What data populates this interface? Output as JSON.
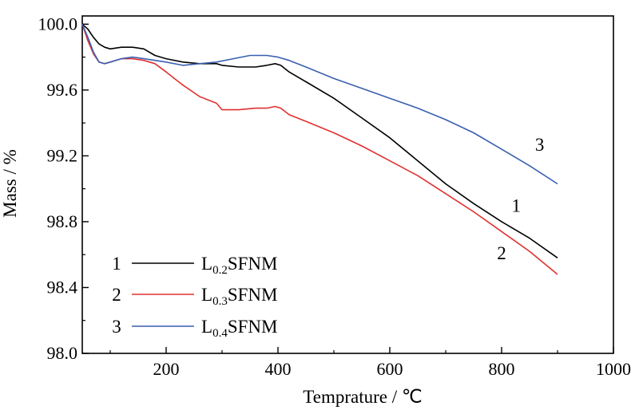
{
  "chart_data": {
    "type": "line",
    "xlabel": "Temprature / ℃",
    "ylabel": "Mass / %",
    "xlim": [
      50,
      1000
    ],
    "ylim": [
      98.0,
      100.05
    ],
    "xticks": [
      "200",
      "400",
      "600",
      "800",
      "1000"
    ],
    "yticks": [
      "98.0",
      "98.4",
      "98.8",
      "99.2",
      "99.6",
      "100.0"
    ],
    "grid": false,
    "legend": "bottom-left",
    "series": [
      {
        "num": "1",
        "name_main": "L",
        "name_sub": "0.2",
        "name_rest": "SFNM",
        "color": "#000000",
        "x": [
          50,
          60,
          70,
          80,
          90,
          100,
          120,
          140,
          160,
          180,
          200,
          230,
          260,
          290,
          300,
          330,
          360,
          380,
          395,
          405,
          420,
          450,
          500,
          550,
          600,
          650,
          700,
          750,
          800,
          850,
          900
        ],
        "y": [
          100.0,
          99.97,
          99.92,
          99.88,
          99.86,
          99.85,
          99.86,
          99.86,
          99.85,
          99.81,
          99.79,
          99.77,
          99.76,
          99.76,
          99.75,
          99.74,
          99.74,
          99.75,
          99.76,
          99.75,
          99.71,
          99.65,
          99.55,
          99.43,
          99.31,
          99.17,
          99.03,
          98.91,
          98.8,
          98.7,
          98.58
        ]
      },
      {
        "num": "2",
        "name_main": "L",
        "name_sub": "0.3",
        "name_rest": "SFNM",
        "color": "#e03030",
        "x": [
          50,
          60,
          70,
          80,
          90,
          100,
          120,
          140,
          160,
          180,
          200,
          230,
          260,
          290,
          300,
          330,
          360,
          380,
          395,
          405,
          420,
          450,
          500,
          550,
          600,
          650,
          700,
          750,
          800,
          850,
          900
        ],
        "y": [
          100.0,
          99.9,
          99.82,
          99.77,
          99.76,
          99.77,
          99.79,
          99.79,
          99.78,
          99.76,
          99.71,
          99.63,
          99.56,
          99.52,
          99.48,
          99.48,
          99.49,
          99.49,
          99.5,
          99.49,
          99.45,
          99.41,
          99.34,
          99.26,
          99.17,
          99.08,
          98.97,
          98.86,
          98.74,
          98.62,
          98.48
        ]
      },
      {
        "num": "3",
        "name_main": "L",
        "name_sub": "0.4",
        "name_rest": "SFNM",
        "color": "#3a5fb0",
        "x": [
          50,
          60,
          70,
          80,
          90,
          100,
          120,
          140,
          160,
          180,
          200,
          230,
          260,
          290,
          320,
          350,
          380,
          400,
          420,
          450,
          500,
          550,
          600,
          650,
          700,
          750,
          800,
          850,
          900
        ],
        "y": [
          100.0,
          99.92,
          99.83,
          99.77,
          99.76,
          99.77,
          99.79,
          99.8,
          99.79,
          99.78,
          99.77,
          99.75,
          99.76,
          99.77,
          99.79,
          99.81,
          99.81,
          99.8,
          99.78,
          99.74,
          99.67,
          99.61,
          99.55,
          99.49,
          99.42,
          99.34,
          99.24,
          99.14,
          99.03
        ]
      }
    ],
    "annotations": [
      {
        "text": "3",
        "x": 868,
        "y": 99.27
      },
      {
        "text": "1",
        "x": 826,
        "y": 98.9
      },
      {
        "text": "2",
        "x": 800,
        "y": 98.61
      }
    ]
  }
}
